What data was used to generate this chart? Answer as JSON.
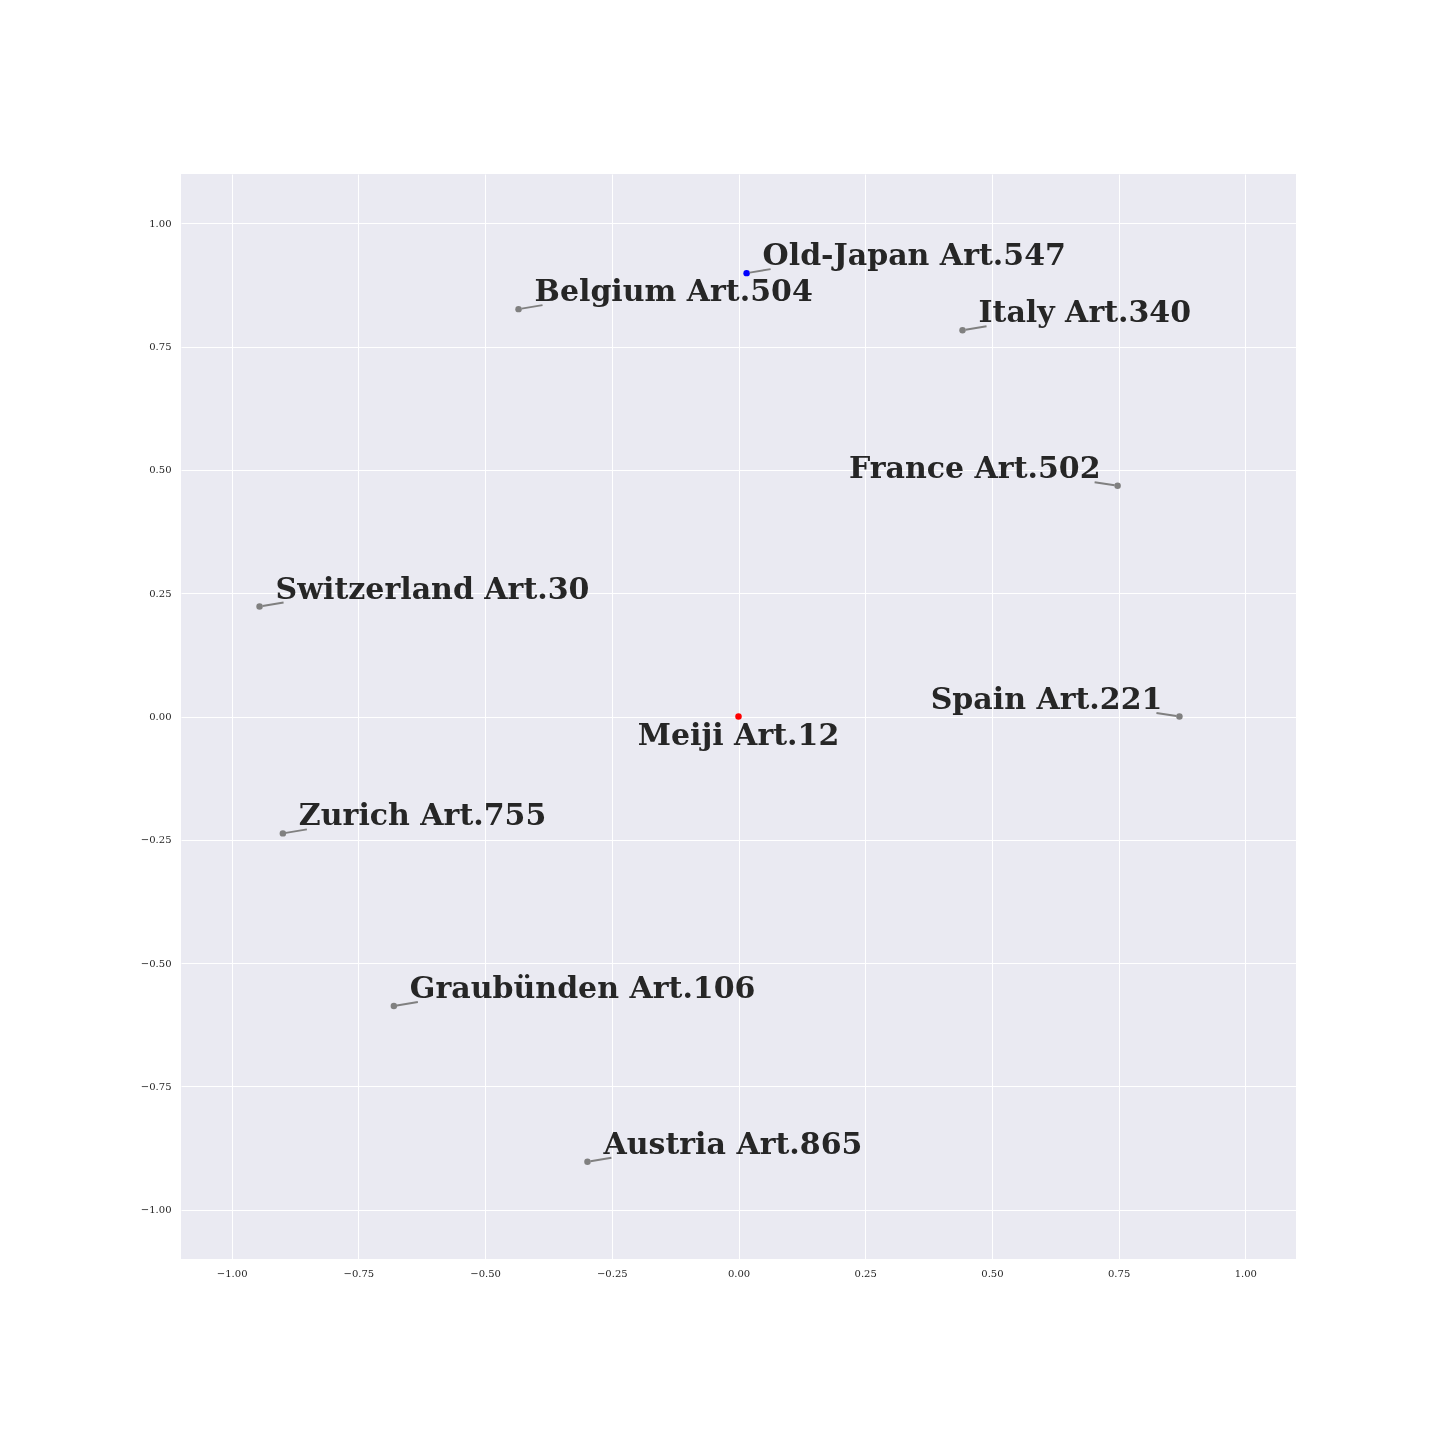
{
  "chart_data": {
    "type": "scatter",
    "xlim": [
      -1.1,
      1.1
    ],
    "ylim": [
      -1.1,
      1.1
    ],
    "xticks": [
      {
        "value": -1,
        "label": "−1.00"
      },
      {
        "value": -0.75,
        "label": "−0.75"
      },
      {
        "value": -0.5,
        "label": "−0.50"
      },
      {
        "value": -0.25,
        "label": "−0.25"
      },
      {
        "value": 0,
        "label": "0.00"
      },
      {
        "value": 0.25,
        "label": "0.25"
      },
      {
        "value": 0.5,
        "label": "0.50"
      },
      {
        "value": 0.75,
        "label": "0.75"
      },
      {
        "value": 1,
        "label": "1.00"
      }
    ],
    "yticks": [
      {
        "value": -1,
        "label": "−1.00"
      },
      {
        "value": -0.75,
        "label": "−0.75"
      },
      {
        "value": -0.5,
        "label": "−0.50"
      },
      {
        "value": -0.25,
        "label": "−0.25"
      },
      {
        "value": 0,
        "label": "0.00"
      },
      {
        "value": 0.25,
        "label": "0.25"
      },
      {
        "value": 0.5,
        "label": "0.50"
      },
      {
        "value": 0.75,
        "label": "0.75"
      },
      {
        "value": 1,
        "label": "1.00"
      }
    ],
    "grid": true,
    "marker": "circle",
    "series": [
      {
        "color": "#808080",
        "x": [
          -0.434,
          0.442,
          0.748,
          -0.945,
          0.87,
          -0.899,
          -0.68,
          -0.298
        ],
        "values": [
          0.826,
          0.783,
          0.468,
          0.223,
          0,
          -0.237,
          -0.587,
          -0.903
        ]
      },
      {
        "color": "#ff0000",
        "x": [
          0
        ],
        "values": [
          0
        ]
      },
      {
        "color": "#0000ff",
        "x": [
          0.016
        ],
        "values": [
          0.899
        ]
      }
    ],
    "annotations": [
      {
        "text": "Meiji Art.12",
        "x": 0,
        "y": 0
      },
      {
        "text": "Old-Japan Art.547",
        "x": 0.016,
        "y": 0.899
      },
      {
        "text": "Belgium Art.504",
        "x": -0.434,
        "y": 0.826
      },
      {
        "text": "Italy Art.340",
        "x": 0.442,
        "y": 0.783
      },
      {
        "text": "France Art.502",
        "x": 0.748,
        "y": 0.468
      },
      {
        "text": "Switzerland Art.30",
        "x": -0.945,
        "y": 0.223
      },
      {
        "text": "Spain Art.221",
        "x": 0.87,
        "y": 0
      },
      {
        "text": "Zurich Art.755",
        "x": -0.899,
        "y": -0.237
      },
      {
        "text": "Graubünden Art.106",
        "x": -0.68,
        "y": -0.587
      },
      {
        "text": "Austria Art.865",
        "x": -0.298,
        "y": -0.903
      }
    ]
  }
}
